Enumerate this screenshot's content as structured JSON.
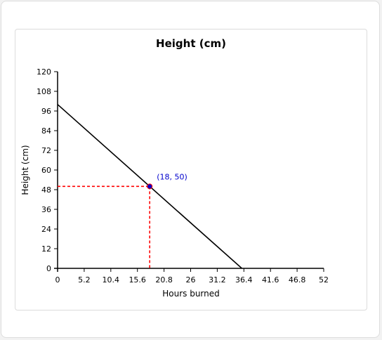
{
  "chart_data": {
    "type": "line",
    "title": "Height (cm)",
    "xlabel": "Hours burned",
    "ylabel": "Height (cm)",
    "xlim": [
      0,
      52
    ],
    "ylim": [
      0,
      120
    ],
    "x_ticks": [
      "0",
      "5.2",
      "10.4",
      "15.6",
      "20.8",
      "26",
      "31.2",
      "36.4",
      "41.6",
      "46.8",
      "52"
    ],
    "y_ticks": [
      "0",
      "12",
      "24",
      "36",
      "48",
      "60",
      "72",
      "84",
      "96",
      "108",
      "120"
    ],
    "series": [
      {
        "x": [
          0,
          36
        ],
        "y": [
          100,
          0
        ],
        "color": "#000000"
      }
    ],
    "highlight": {
      "x": 18,
      "y": 50,
      "label": "(18, 50)",
      "color": "#0000cc",
      "guide_color": "#ff0000"
    },
    "grid": false
  }
}
